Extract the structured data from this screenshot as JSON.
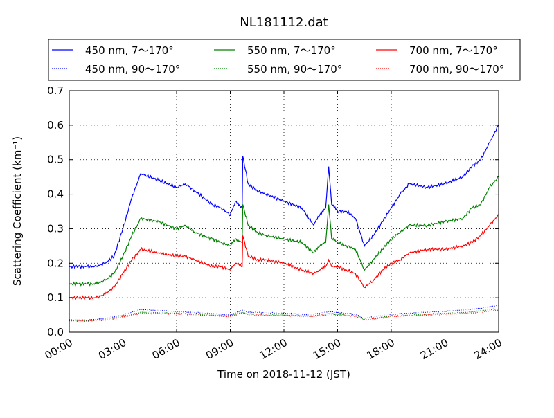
{
  "chart_data": {
    "type": "line",
    "title": "NL181112.dat",
    "xlabel": "Time on 2018-11-12 (JST)",
    "ylabel": "Scattering Coefficient (km⁻¹)",
    "xlim": [
      "2018-11-12 00:00",
      "2018-11-13 00:00"
    ],
    "ylim": [
      0.0,
      0.7
    ],
    "grid": true,
    "legend_position": "top",
    "x_ticks": [
      "00:00",
      "03:00",
      "06:00",
      "09:00",
      "12:00",
      "15:00",
      "18:00",
      "21:00",
      "24:00"
    ],
    "y_ticks": [
      "0.0",
      "0.1",
      "0.2",
      "0.3",
      "0.4",
      "0.5",
      "0.6",
      "0.7"
    ],
    "series": [
      {
        "name": "450 nm, 7～170°",
        "color": "#0000ff",
        "linestyle": "solid",
        "x": [
          "00:00",
          "00:30",
          "01:00",
          "01:30",
          "02:00",
          "02:30",
          "03:00",
          "03:30",
          "04:00",
          "05:00",
          "06:00",
          "06:30",
          "07:00",
          "08:00",
          "08:30",
          "09:00",
          "09:20",
          "09:40",
          "09:42",
          "10:00",
          "10:30",
          "11:00",
          "12:00",
          "13:00",
          "13:40",
          "14:00",
          "14:20",
          "14:30",
          "14:40",
          "15:00",
          "15:30",
          "16:00",
          "16:30",
          "17:00",
          "17:30",
          "18:00",
          "18:30",
          "19:00",
          "20:00",
          "21:00",
          "22:00",
          "22:30",
          "23:00",
          "23:30",
          "24:00"
        ],
        "y": [
          0.19,
          0.19,
          0.19,
          0.19,
          0.2,
          0.22,
          0.3,
          0.39,
          0.46,
          0.44,
          0.42,
          0.43,
          0.41,
          0.37,
          0.36,
          0.34,
          0.38,
          0.36,
          0.51,
          0.43,
          0.41,
          0.4,
          0.38,
          0.36,
          0.31,
          0.34,
          0.36,
          0.48,
          0.37,
          0.35,
          0.35,
          0.33,
          0.25,
          0.28,
          0.32,
          0.36,
          0.4,
          0.43,
          0.42,
          0.43,
          0.45,
          0.48,
          0.5,
          0.55,
          0.6
        ]
      },
      {
        "name": "450 nm, 90～170°",
        "color": "#0000ff",
        "linestyle": "dotted",
        "x": [
          "00:00",
          "01:00",
          "02:00",
          "03:00",
          "04:00",
          "06:00",
          "08:00",
          "09:00",
          "09:40",
          "10:00",
          "12:00",
          "13:30",
          "14:30",
          "15:00",
          "16:00",
          "16:30",
          "18:00",
          "20:00",
          "21:00",
          "22:00",
          "23:00",
          "24:00"
        ],
        "y": [
          0.036,
          0.035,
          0.04,
          0.05,
          0.066,
          0.06,
          0.054,
          0.05,
          0.064,
          0.058,
          0.055,
          0.051,
          0.06,
          0.057,
          0.052,
          0.04,
          0.052,
          0.058,
          0.061,
          0.064,
          0.07,
          0.078
        ]
      },
      {
        "name": "550 nm, 7～170°",
        "color": "#008000",
        "linestyle": "solid",
        "x": [
          "00:00",
          "00:30",
          "01:00",
          "01:30",
          "02:00",
          "02:30",
          "03:00",
          "03:30",
          "04:00",
          "05:00",
          "06:00",
          "06:30",
          "07:00",
          "08:00",
          "08:30",
          "09:00",
          "09:20",
          "09:40",
          "09:42",
          "10:00",
          "10:30",
          "11:00",
          "12:00",
          "13:00",
          "13:40",
          "14:00",
          "14:20",
          "14:30",
          "14:40",
          "15:00",
          "15:30",
          "16:00",
          "16:30",
          "17:00",
          "17:30",
          "18:00",
          "18:30",
          "19:00",
          "20:00",
          "21:00",
          "22:00",
          "22:30",
          "23:00",
          "23:30",
          "24:00"
        ],
        "y": [
          0.14,
          0.14,
          0.14,
          0.14,
          0.15,
          0.17,
          0.22,
          0.28,
          0.33,
          0.32,
          0.3,
          0.31,
          0.29,
          0.27,
          0.26,
          0.25,
          0.27,
          0.26,
          0.37,
          0.31,
          0.29,
          0.28,
          0.27,
          0.26,
          0.23,
          0.25,
          0.26,
          0.37,
          0.27,
          0.26,
          0.25,
          0.24,
          0.18,
          0.21,
          0.24,
          0.27,
          0.29,
          0.31,
          0.31,
          0.32,
          0.33,
          0.36,
          0.37,
          0.42,
          0.45
        ]
      },
      {
        "name": "550 nm, 90～170°",
        "color": "#008000",
        "linestyle": "dotted",
        "x": [
          "00:00",
          "01:00",
          "02:00",
          "03:00",
          "04:00",
          "06:00",
          "08:00",
          "09:00",
          "09:40",
          "10:00",
          "12:00",
          "13:30",
          "14:30",
          "15:00",
          "16:00",
          "16:30",
          "18:00",
          "20:00",
          "21:00",
          "22:00",
          "23:00",
          "24:00"
        ],
        "y": [
          0.034,
          0.033,
          0.037,
          0.046,
          0.058,
          0.055,
          0.05,
          0.047,
          0.058,
          0.053,
          0.05,
          0.047,
          0.054,
          0.052,
          0.048,
          0.037,
          0.047,
          0.052,
          0.055,
          0.057,
          0.062,
          0.068
        ]
      },
      {
        "name": "700 nm, 7～170°",
        "color": "#ff0000",
        "linestyle": "solid",
        "x": [
          "00:00",
          "00:30",
          "01:00",
          "01:30",
          "02:00",
          "02:30",
          "03:00",
          "03:30",
          "04:00",
          "05:00",
          "06:00",
          "06:30",
          "07:00",
          "08:00",
          "08:30",
          "09:00",
          "09:20",
          "09:40",
          "09:42",
          "10:00",
          "10:30",
          "11:00",
          "12:00",
          "13:00",
          "13:40",
          "14:00",
          "14:20",
          "14:30",
          "14:40",
          "15:00",
          "15:30",
          "16:00",
          "16:30",
          "17:00",
          "17:30",
          "18:00",
          "18:30",
          "19:00",
          "20:00",
          "21:00",
          "22:00",
          "22:30",
          "23:00",
          "23:30",
          "24:00"
        ],
        "y": [
          0.1,
          0.1,
          0.1,
          0.1,
          0.11,
          0.13,
          0.17,
          0.21,
          0.24,
          0.23,
          0.22,
          0.22,
          0.21,
          0.19,
          0.19,
          0.18,
          0.2,
          0.19,
          0.28,
          0.22,
          0.21,
          0.21,
          0.2,
          0.18,
          0.17,
          0.18,
          0.19,
          0.21,
          0.19,
          0.19,
          0.18,
          0.17,
          0.13,
          0.15,
          0.18,
          0.2,
          0.21,
          0.23,
          0.24,
          0.24,
          0.25,
          0.26,
          0.28,
          0.31,
          0.34
        ]
      },
      {
        "name": "700 nm, 90～170°",
        "color": "#ff0000",
        "linestyle": "dotted",
        "x": [
          "00:00",
          "01:00",
          "02:00",
          "03:00",
          "04:00",
          "06:00",
          "08:00",
          "09:00",
          "09:40",
          "10:00",
          "12:00",
          "13:30",
          "14:30",
          "15:00",
          "16:00",
          "16:30",
          "18:00",
          "20:00",
          "21:00",
          "22:00",
          "23:00",
          "24:00"
        ],
        "y": [
          0.033,
          0.032,
          0.035,
          0.044,
          0.055,
          0.053,
          0.048,
          0.045,
          0.055,
          0.05,
          0.048,
          0.045,
          0.051,
          0.05,
          0.046,
          0.035,
          0.045,
          0.05,
          0.052,
          0.054,
          0.058,
          0.064
        ]
      }
    ]
  }
}
